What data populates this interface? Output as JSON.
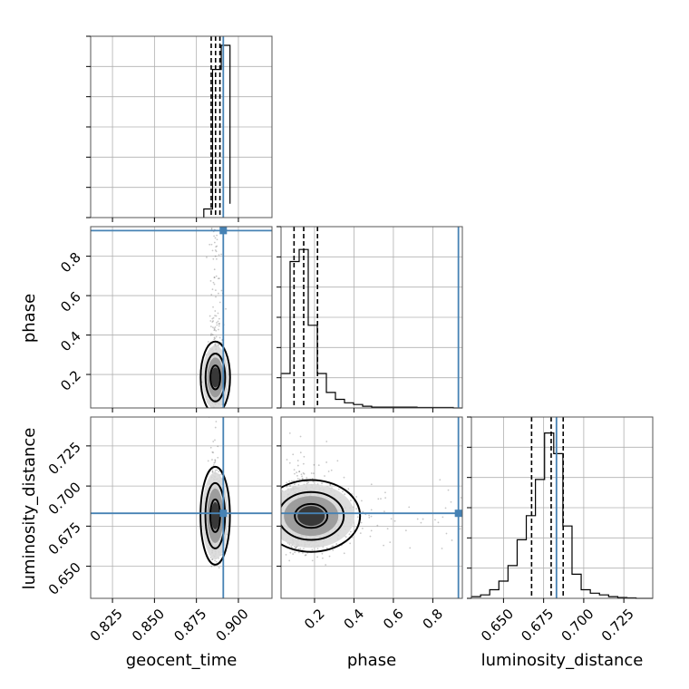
{
  "chart_data": {
    "type": "corner",
    "parameters": [
      "geocent_time",
      "phase",
      "luminosity_distance"
    ],
    "truth_color": "#4682b4",
    "truths": {
      "geocent_time": 0.891,
      "phase": 0.93,
      "luminosity_distance": 0.683
    },
    "ranges": {
      "geocent_time": [
        0.812,
        0.92
      ],
      "phase": [
        0.03,
        0.95
      ],
      "luminosity_distance": [
        0.63,
        0.743
      ]
    },
    "ticks": {
      "geocent_time": {
        "values": [
          0.825,
          0.85,
          0.875,
          0.9
        ],
        "labels": [
          "0.825",
          "0.850",
          "0.875",
          "0.900"
        ]
      },
      "phase": {
        "values": [
          0.2,
          0.4,
          0.6,
          0.8
        ],
        "labels": [
          "0.2",
          "0.4",
          "0.6",
          "0.8"
        ]
      },
      "luminosity_distance": {
        "values": [
          0.65,
          0.675,
          0.7,
          0.725
        ],
        "labels": [
          "0.650",
          "0.675",
          "0.700",
          "0.725"
        ]
      }
    },
    "diag_y_ticks": 6,
    "quantiles": {
      "geocent_time": [
        0.8838,
        0.8864,
        0.889
      ],
      "phase": [
        0.096,
        0.145,
        0.215
      ],
      "luminosity_distance": [
        0.6675,
        0.6797,
        0.6872
      ]
    },
    "histograms": {
      "geocent_time": {
        "edges": [
          0.8794,
          0.8846,
          0.8898,
          0.895
        ],
        "counts": [
          0.05,
          0.86,
          1.0,
          0.08
        ]
      },
      "phase": {
        "edges": [
          0.03,
          0.076,
          0.122,
          0.168,
          0.214,
          0.26,
          0.306,
          0.352,
          0.398,
          0.444,
          0.49,
          0.536,
          0.582,
          0.628,
          0.674,
          0.72,
          0.766,
          0.812,
          0.858,
          0.904,
          0.95
        ],
        "counts": [
          0.2,
          0.85,
          0.92,
          0.48,
          0.2,
          0.09,
          0.05,
          0.03,
          0.02,
          0.01,
          0.005,
          0.005,
          0.005,
          0.005,
          0.005,
          0.003,
          0.003,
          0.003,
          0.003,
          0.0
        ]
      },
      "luminosity_distance": {
        "edges": [
          0.63,
          0.6357,
          0.6414,
          0.6471,
          0.6528,
          0.6585,
          0.6642,
          0.6699,
          0.6756,
          0.6813,
          0.687,
          0.6927,
          0.6984,
          0.7041,
          0.7098,
          0.7155,
          0.7212,
          0.7269,
          0.7326,
          0.743
        ],
        "counts": [
          0.01,
          0.02,
          0.05,
          0.1,
          0.19,
          0.34,
          0.48,
          0.69,
          0.96,
          0.84,
          0.42,
          0.14,
          0.05,
          0.03,
          0.02,
          0.01,
          0.005,
          0.003,
          0.0
        ]
      }
    },
    "samples": {
      "geocent_time": {
        "mean": 0.8862,
        "sd": 0.0021,
        "lo": 0.877,
        "hi": 0.895
      },
      "phase": {
        "median": 0.15,
        "lo": 0.03,
        "hi": 0.95
      },
      "luminosity_distance": {
        "mean": 0.68,
        "sd": 0.01,
        "lo": 0.645,
        "hi": 0.743
      }
    }
  }
}
